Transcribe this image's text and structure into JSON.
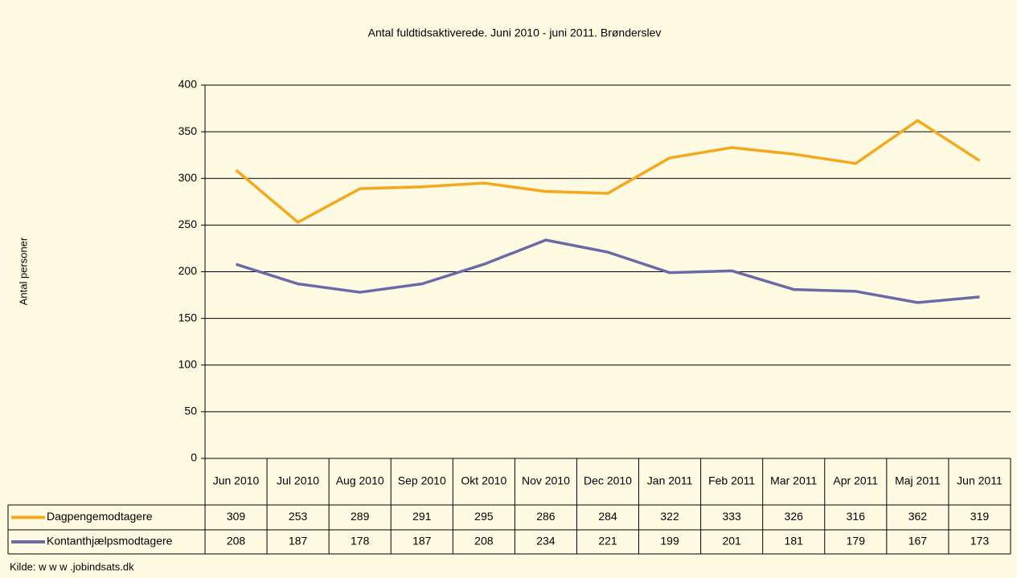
{
  "chart_data": {
    "type": "line",
    "title": "Antal fuldtidsaktiverede. Juni 2010 - juni 2011. Brønderslev",
    "y_label": "Antal personer",
    "source": "Kilde: w w w .jobindsats.dk",
    "categories": [
      "Jun 2010",
      "Jul 2010",
      "Aug 2010",
      "Sep 2010",
      "Okt 2010",
      "Nov 2010",
      "Dec 2010",
      "Jan 2011",
      "Feb 2011",
      "Mar 2011",
      "Apr 2011",
      "Maj 2011",
      "Jun 2011"
    ],
    "series": [
      {
        "name": "Dagpengemodtagere",
        "color": "#f5a81c",
        "values": [
          309,
          253,
          289,
          291,
          295,
          286,
          284,
          322,
          333,
          326,
          316,
          362,
          319
        ]
      },
      {
        "name": "Kontanthjælpsmodtagere",
        "color": "#6a6aa8",
        "values": [
          208,
          187,
          178,
          187,
          208,
          234,
          221,
          199,
          201,
          181,
          179,
          167,
          173
        ]
      }
    ],
    "ylim": [
      0,
      400
    ],
    "yticks": [
      0,
      50,
      100,
      150,
      200,
      250,
      300,
      350,
      400
    ],
    "grid": true,
    "data_table": true
  }
}
